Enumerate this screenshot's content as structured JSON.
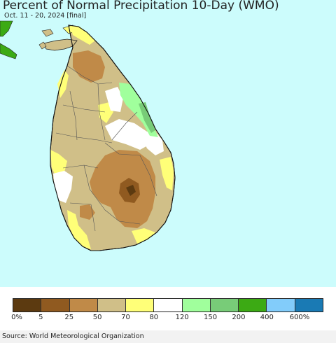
{
  "header": {
    "title": "Percent of Normal Precipitation 10-Day (WMO)",
    "subtitle": "Oct. 11 - 20, 2024 [final]"
  },
  "map": {
    "ocean_color": "#ccfcfc",
    "region": "Sri Lanka"
  },
  "legend": {
    "colors": [
      "#5c3a10",
      "#905a20",
      "#c08a48",
      "#d0bf88",
      "#ffff78",
      "#ffffff",
      "#a0ff9c",
      "#78cc78",
      "#3caa14",
      "#82ccfa",
      "#1a7ab4"
    ],
    "labels": [
      "0%",
      "5",
      "25",
      "50",
      "70",
      "80",
      "120",
      "150",
      "200",
      "400",
      "600%"
    ]
  },
  "footer": {
    "source": "Source: World Meteorological Organization"
  }
}
